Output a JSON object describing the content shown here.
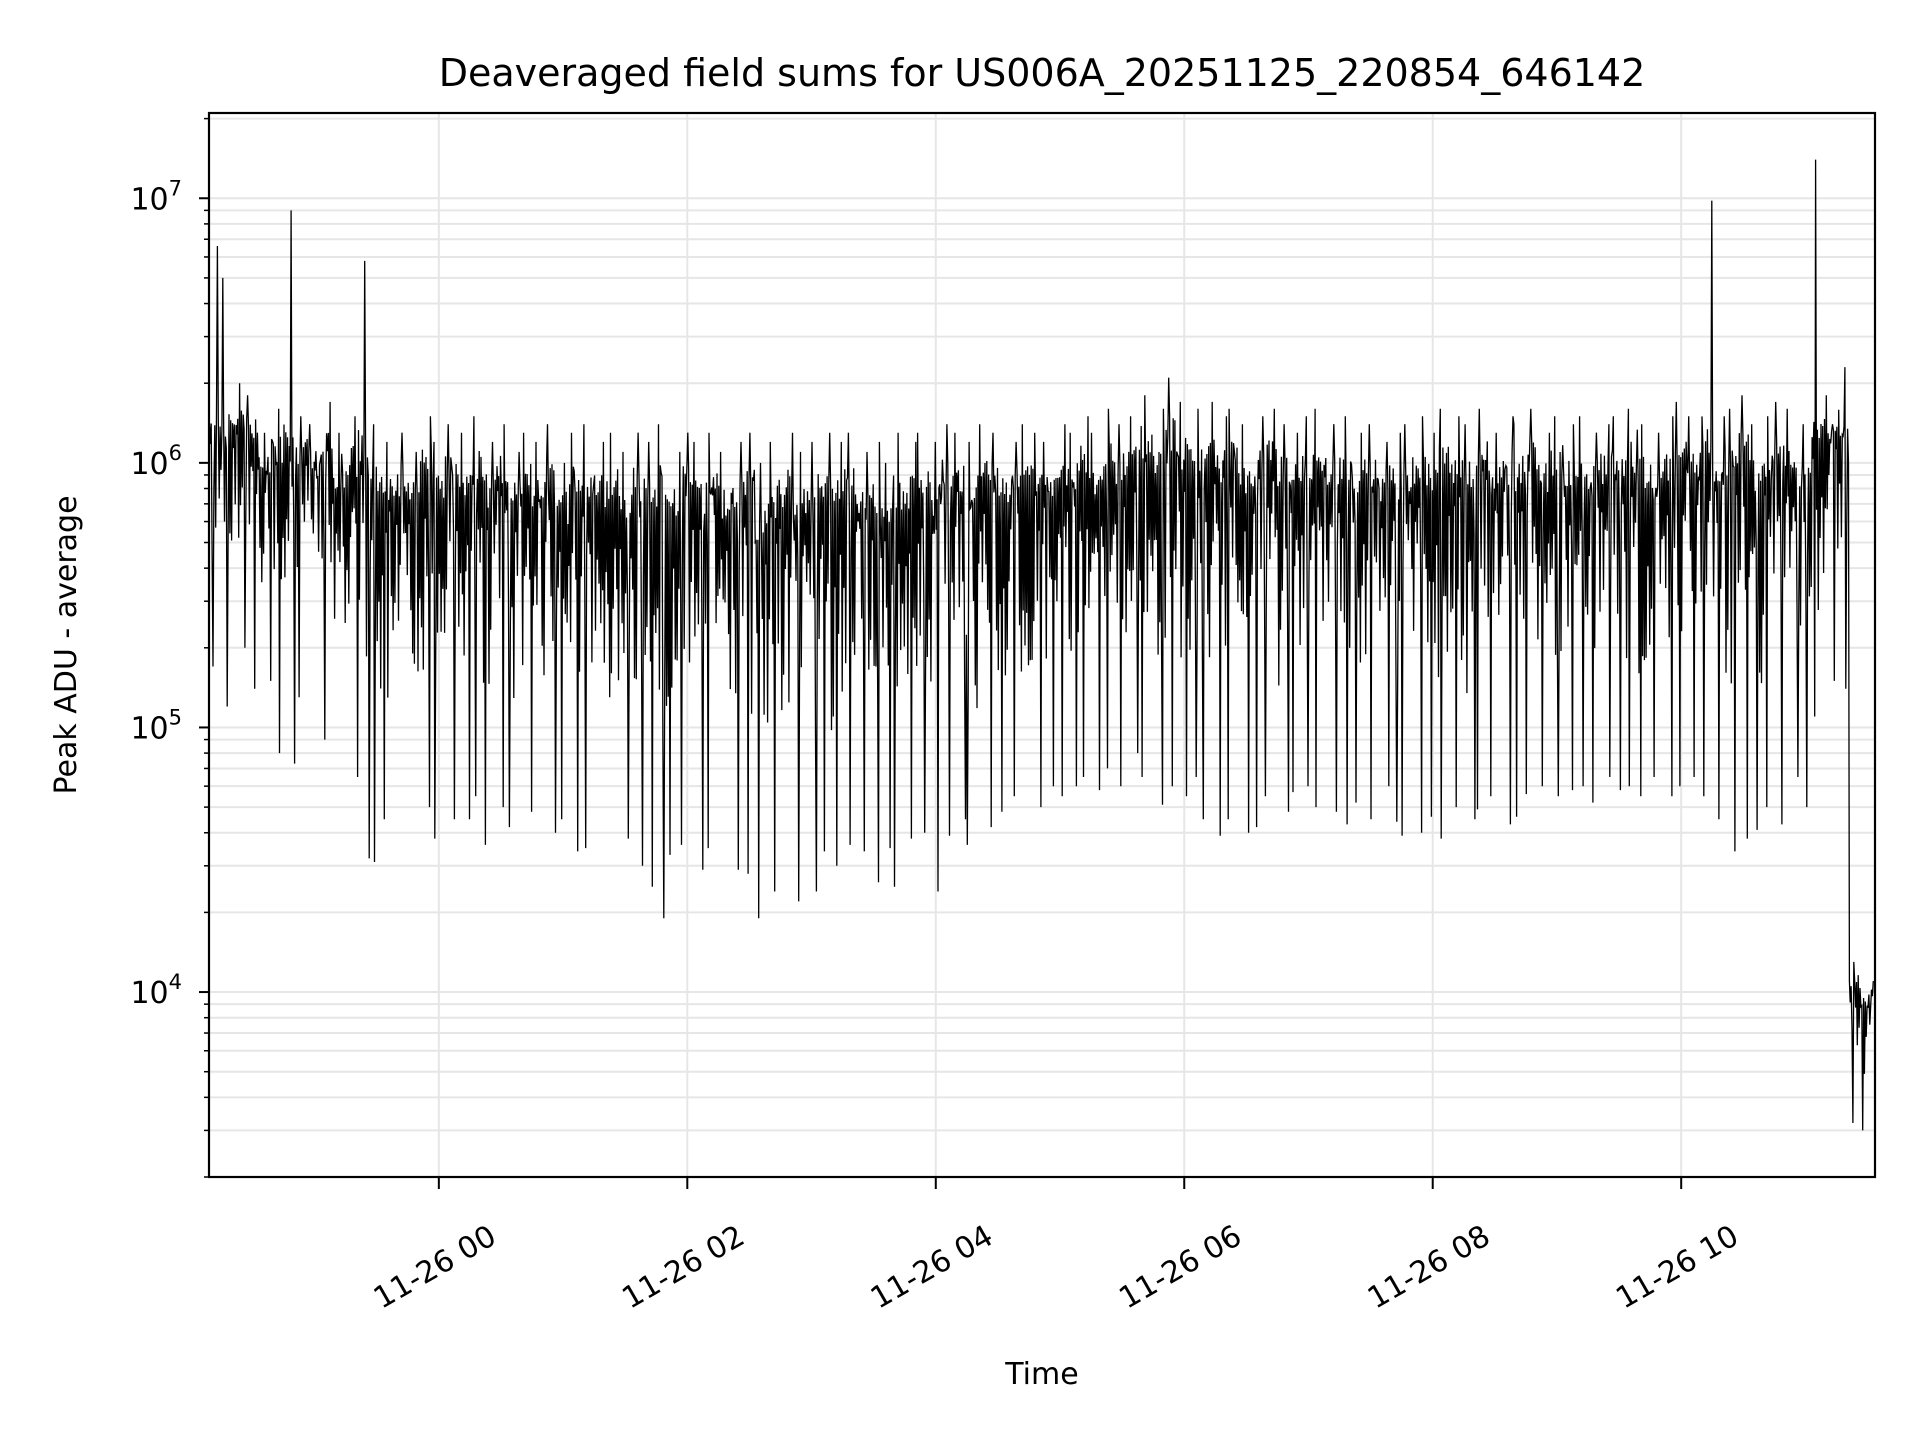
{
  "chart_data": {
    "type": "line",
    "title": "Deaveraged field sums for US006A_20251125_220854_646142",
    "xlabel": "Time",
    "ylabel": "Peak ADU - average",
    "yscale": "log",
    "ylim": [
      2000,
      21000000
    ],
    "xlim_hours_from_2025_11_26_00": [
      -1.85,
      11.56
    ],
    "grid": true,
    "x_ticks": [
      {
        "hour": 0,
        "label": "11-26 00"
      },
      {
        "hour": 2,
        "label": "11-26 02"
      },
      {
        "hour": 4,
        "label": "11-26 04"
      },
      {
        "hour": 6,
        "label": "11-26 06"
      },
      {
        "hour": 8,
        "label": "11-26 08"
      },
      {
        "hour": 10,
        "label": "11-26 10"
      }
    ],
    "y_ticks": [
      {
        "value": 10000,
        "base": "10",
        "exp": "4"
      },
      {
        "value": 100000,
        "base": "10",
        "exp": "5"
      },
      {
        "value": 1000000,
        "base": "10",
        "exp": "6"
      },
      {
        "value": 10000000,
        "base": "10",
        "exp": "7"
      }
    ],
    "series": [
      {
        "name": "Peak ADU - average",
        "color": "#000000",
        "x_start_hour": -1.8,
        "x_step_hour": 0.1,
        "bin_max": [
          6600000.0,
          5000000.0,
          2000000.0,
          1800000.0,
          1300000.0,
          1600000.0,
          9000000.0,
          1500000.0,
          1400000.0,
          1700000.0,
          1300000.0,
          1500000.0,
          5800000.0,
          1400000.0,
          1200000.0,
          1300000.0,
          1100000.0,
          1500000.0,
          1200000.0,
          1400000.0,
          1300000.0,
          1500000.0,
          1200000.0,
          1400000.0,
          1100000.0,
          1300000.0,
          1200000.0,
          1400000.0,
          1000000.0,
          1300000.0,
          1400000.0,
          1200000.0,
          1300000.0,
          1100000.0,
          1300000.0,
          1200000.0,
          1400000.0,
          1100000.0,
          1300000.0,
          1200000.0,
          1300000.0,
          1100000.0,
          1200000.0,
          1300000.0,
          1000000.0,
          1200000.0,
          1300000.0,
          1100000.0,
          1200000.0,
          1300000.0,
          1200000.0,
          1300000.0,
          1100000.0,
          1200000.0,
          1000000.0,
          1300000.0,
          1200000.0,
          1300000.0,
          1200000.0,
          1400000.0,
          1300000.0,
          1200000.0,
          1400000.0,
          1300000.0,
          1200000.0,
          1400000.0,
          1300000.0,
          1200000.0,
          1400000.0,
          1300000.0,
          1500000.0,
          1300000.0,
          1600000.0,
          1400000.0,
          1500000.0,
          1800000.0,
          1600000.0,
          2100000.0,
          1700000.0,
          1600000.0,
          1700000.0,
          1500000.0,
          1600000.0,
          1400000.0,
          1500000.0,
          1600000.0,
          1400000.0,
          1300000.0,
          1500000.0,
          1600000.0,
          1400000.0,
          1500000.0,
          1300000.0,
          1400000.0,
          1200000.0,
          1300000.0,
          1400000.0,
          1500000.0,
          1300000.0,
          1600000.0,
          1500000.0,
          1400000.0,
          1600000.0,
          1300000.0,
          1500000.0,
          1400000.0,
          1600000.0,
          1300000.0,
          1500000.0,
          1400000.0,
          1500000.0,
          1300000.0,
          1400000.0,
          1500000.0,
          1600000.0,
          1400000.0,
          1300000.0,
          1500000.0,
          1700000.0,
          1500000.0,
          9800000.0,
          1500000.0,
          1600000.0,
          1800000.0,
          1400000.0,
          1500000.0,
          1700000.0,
          1600000.0,
          1400000.0,
          14000000.0,
          1800000.0,
          2300000.0,
          13000.0,
          11000.0
        ],
        "bin_min": [
          170000.0,
          120000.0,
          200000.0,
          140000.0,
          150000.0,
          80000.0,
          73000.0,
          130000.0,
          100000.0,
          90000.0,
          70000.0,
          65000.0,
          32000.0,
          31000.0,
          45000.0,
          40000.0,
          60000.0,
          50000.0,
          38000.0,
          45000.0,
          45000.0,
          55000.0,
          36000.0,
          50000.0,
          42000.0,
          48000.0,
          35000.0,
          40000.0,
          45000.0,
          34000.0,
          35000.0,
          40000.0,
          34000.0,
          38000.0,
          30000.0,
          25000.0,
          19000.0,
          33000.0,
          36000.0,
          29000.0,
          35000.0,
          33000.0,
          29000.0,
          28000.0,
          19000.0,
          24000.0,
          27000.0,
          22000.0,
          24000.0,
          34000.0,
          30000.0,
          36000.0,
          34000.0,
          26000.0,
          35000.0,
          25000.0,
          38000.0,
          40000.0,
          24000.0,
          39000.0,
          45000.0,
          36000.0,
          42000.0,
          48000.0,
          55000.0,
          32000.0,
          50000.0,
          60000.0,
          55000.0,
          60000.0,
          65000.0,
          58000.0,
          70000.0,
          60000.0,
          80000.0,
          65000.0,
          51000.0,
          60000.0,
          55000.0,
          65000.0,
          45000.0,
          39000.0,
          45000.0,
          40000.0,
          42000.0,
          55000.0,
          48000.0,
          57000.0,
          60000.0,
          50000.0,
          48000.0,
          43000.0,
          52000.0,
          45000.0,
          60000.0,
          44000.0,
          39000.0,
          40000.0,
          46000.0,
          38000.0,
          50000.0,
          45000.0,
          49000.0,
          55000.0,
          43000.0,
          46000.0,
          56000.0,
          60000.0,
          55000.0,
          58000.0,
          60000.0,
          52000.0,
          65000.0,
          58000.0,
          60000.0,
          55000.0,
          65000.0,
          55000.0,
          60000.0,
          65000.0,
          55000.0,
          45000.0,
          34000.0,
          38000.0,
          41000.0,
          50000.0,
          43000.0,
          65000.0,
          50000.0,
          110000.0,
          150000.0,
          140000.0,
          3200.0,
          3000.0
        ]
      }
    ]
  }
}
